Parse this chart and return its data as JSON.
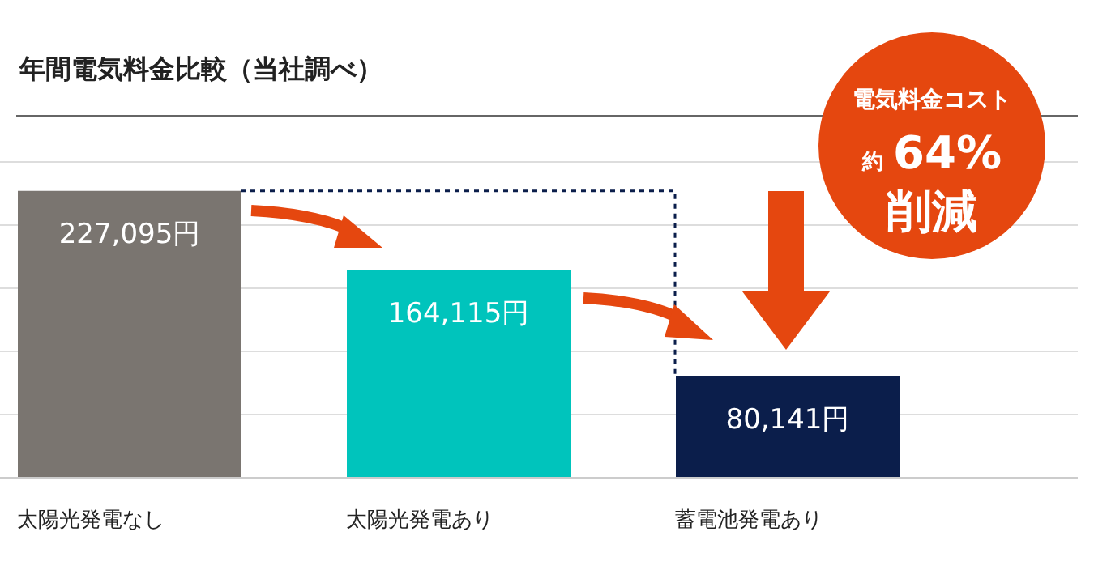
{
  "chart_data": {
    "type": "bar",
    "title": "年間電気料金比較（当社調べ）",
    "categories": [
      "太陽光発電なし",
      "太陽光発電あり",
      "蓄電池発電あり"
    ],
    "values": [
      227095,
      164115,
      80141
    ],
    "colors": [
      "#7a7570",
      "#00c4bc",
      "#0b1e4b"
    ],
    "value_labels": [
      "227,095円",
      "164,115円",
      "80,141円"
    ],
    "ylim": [
      0,
      250000
    ],
    "yticks": [
      {
        "value": 0,
        "label": null
      },
      {
        "value": 50000,
        "label": null
      },
      {
        "value": 100000,
        "label": null
      },
      {
        "value": 150000,
        "label": null
      },
      {
        "value": 200000,
        "label": null
      },
      {
        "value": 250000,
        "label": null
      }
    ],
    "grid": "y",
    "tick_labels": "x",
    "legend": false,
    "ref_lines": [
      {
        "axis": "y",
        "value": 227095,
        "label": null,
        "line_style": "dashed",
        "color": "#0b1e4b"
      }
    ],
    "annotations": [
      "電気料金コスト",
      "約 64%",
      "削減"
    ]
  }
}
